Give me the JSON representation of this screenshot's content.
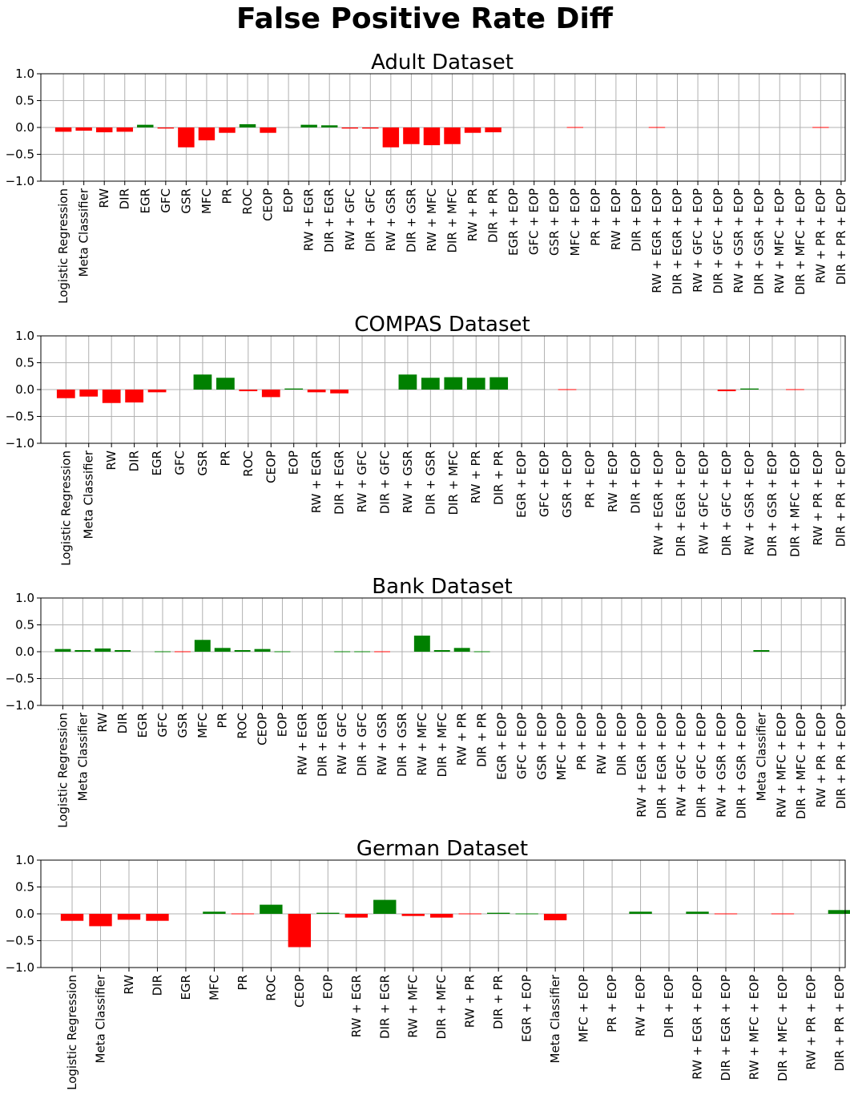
{
  "figure": {
    "title": "False Positive Rate Diff"
  },
  "colors": {
    "positive": "#008000",
    "negative": "#ff0000",
    "grid": "#b0b0b0"
  },
  "chart_data": [
    {
      "type": "bar",
      "title": "Adult Dataset",
      "xlabel": "",
      "ylabel": "",
      "ylim": [
        -1.0,
        1.0
      ],
      "yticks": [
        "1.0",
        "0.5",
        "0.0",
        "−0.5",
        "−1.0"
      ],
      "grid": true,
      "categories": [
        "Logistic Regression",
        "Meta Classifier",
        "RW",
        "DIR",
        "EGR",
        "GFC",
        "GSR",
        "MFC",
        "PR",
        "ROC",
        "CEOP",
        "EOP",
        "RW + EGR",
        "DIR + EGR",
        "RW + GFC",
        "DIR + GFC",
        "RW + GSR",
        "DIR + GSR",
        "RW + MFC",
        "DIR + MFC",
        "RW + PR",
        "DIR + PR",
        "EGR + EOP",
        "GFC + EOP",
        "GSR + EOP",
        "MFC + EOP",
        "PR + EOP",
        "RW + EOP",
        "DIR + EOP",
        "RW + EGR + EOP",
        "DIR + EGR + EOP",
        "RW + GFC + EOP",
        "DIR + GFC + EOP",
        "RW + GSR + EOP",
        "DIR + GSR + EOP",
        "RW + MFC + EOP",
        "DIR + MFC + EOP",
        "RW + PR + EOP",
        "DIR + PR + EOP"
      ],
      "values": [
        -0.08,
        -0.06,
        -0.09,
        -0.08,
        0.05,
        -0.02,
        -0.37,
        -0.24,
        -0.1,
        0.06,
        -0.1,
        0.0,
        0.05,
        0.04,
        -0.02,
        -0.02,
        -0.37,
        -0.31,
        -0.33,
        -0.31,
        -0.1,
        -0.09,
        0.0,
        0.0,
        0.0,
        -0.005,
        0.0,
        0.0,
        0.0,
        -0.005,
        0.0,
        0.0,
        0.0,
        0.0,
        0.0,
        0.0,
        0.0,
        -0.005,
        0.0
      ]
    },
    {
      "type": "bar",
      "title": "COMPAS Dataset",
      "xlabel": "",
      "ylabel": "",
      "ylim": [
        -1.0,
        1.0
      ],
      "yticks": [
        "1.0",
        "0.5",
        "0.0",
        "−0.5",
        "−1.0"
      ],
      "grid": true,
      "categories": [
        "Logistic Regression",
        "Meta Classifier",
        "RW",
        "DIR",
        "EGR",
        "GFC",
        "GSR",
        "PR",
        "ROC",
        "CEOP",
        "EOP",
        "RW + EGR",
        "DIR + EGR",
        "RW + GFC",
        "DIR + GFC",
        "RW + GSR",
        "DIR + GSR",
        "DIR + MFC",
        "RW + PR",
        "DIR + PR",
        "EGR + EOP",
        "GFC + EOP",
        "GSR + EOP",
        "PR + EOP",
        "RW + EOP",
        "DIR + EOP",
        "RW + EGR + EOP",
        "DIR + EGR + EOP",
        "RW + GFC + EOP",
        "DIR + GFC + EOP",
        "RW + GSR + EOP",
        "DIR + GSR + EOP",
        "DIR + MFC + EOP",
        "RW + PR + EOP",
        "DIR + PR + EOP"
      ],
      "values": [
        -0.16,
        -0.13,
        -0.25,
        -0.24,
        -0.05,
        0.0,
        0.28,
        0.22,
        -0.03,
        -0.14,
        0.02,
        -0.05,
        -0.07,
        0.0,
        0.0,
        0.28,
        0.22,
        0.23,
        0.22,
        0.23,
        0.0,
        0.0,
        -0.005,
        0.0,
        0.0,
        0.0,
        0.0,
        0.0,
        0.0,
        -0.03,
        0.02,
        0.0,
        -0.005,
        0.0,
        0.0
      ]
    },
    {
      "type": "bar",
      "title": "Bank Dataset",
      "xlabel": "",
      "ylabel": "",
      "ylim": [
        -1.0,
        1.0
      ],
      "yticks": [
        "1.0",
        "0.5",
        "0.0",
        "−0.5",
        "−1.0"
      ],
      "grid": true,
      "categories": [
        "Logistic Regression",
        "Meta Classifier",
        "RW",
        "DIR",
        "EGR",
        "GFC",
        "GSR",
        "MFC",
        "PR",
        "ROC",
        "CEOP",
        "EOP",
        "RW + EGR",
        "DIR + EGR",
        "RW + GFC",
        "DIR + GFC",
        "RW + GSR",
        "DIR + GSR",
        "RW + MFC",
        "DIR + MFC",
        "RW + PR",
        "DIR + PR",
        "EGR + EOP",
        "GFC + EOP",
        "GSR + EOP",
        "MFC + EOP",
        "PR + EOP",
        "RW + EOP",
        "DIR + EOP",
        "RW + EGR + EOP",
        "DIR + EGR + EOP",
        "RW + GFC + EOP",
        "DIR + GFC + EOP",
        "RW + GSR + EOP",
        "DIR + GSR + EOP",
        "Meta Classifier",
        "RW + MFC + EOP",
        "DIR + MFC + EOP",
        "RW + PR + EOP",
        "DIR + PR + EOP"
      ],
      "values": [
        0.05,
        0.03,
        0.06,
        0.03,
        0.0,
        0.01,
        -0.005,
        0.22,
        0.07,
        0.03,
        0.05,
        0.01,
        0.0,
        0.0,
        0.01,
        0.01,
        -0.005,
        0.0,
        0.3,
        0.03,
        0.07,
        0.01,
        0.0,
        0.0,
        0.0,
        0.0,
        0.0,
        0.0,
        0.0,
        0.0,
        0.0,
        0.0,
        0.0,
        0.0,
        0.0,
        0.03,
        0.0,
        0.0,
        0.0,
        0.0
      ]
    },
    {
      "type": "bar",
      "title": "German Dataset",
      "xlabel": "",
      "ylabel": "",
      "ylim": [
        -1.0,
        1.0
      ],
      "yticks": [
        "1.0",
        "0.5",
        "0.0",
        "−0.5",
        "−1.0"
      ],
      "grid": true,
      "categories": [
        "Logistic Regression",
        "Meta Classifier",
        "RW",
        "DIR",
        "EGR",
        "MFC",
        "PR",
        "ROC",
        "CEOP",
        "EOP",
        "RW + EGR",
        "DIR + EGR",
        "RW + MFC",
        "DIR + MFC",
        "RW + PR",
        "DIR + PR",
        "EGR + EOP",
        "Meta Classifier",
        "MFC + EOP",
        "PR + EOP",
        "RW + EOP",
        "DIR + EOP",
        "RW + EGR + EOP",
        "DIR + EGR + EOP",
        "RW + MFC + EOP",
        "DIR + MFC + EOP",
        "RW + PR + EOP",
        "DIR + PR + EOP"
      ],
      "values": [
        -0.13,
        -0.23,
        -0.11,
        -0.13,
        0.0,
        0.04,
        -0.01,
        0.17,
        -0.62,
        0.02,
        -0.07,
        0.26,
        -0.04,
        -0.07,
        -0.01,
        0.02,
        0.01,
        -0.12,
        0.0,
        0.0,
        0.04,
        0.0,
        0.04,
        -0.01,
        0.0,
        -0.01,
        0.0,
        0.07
      ]
    }
  ]
}
